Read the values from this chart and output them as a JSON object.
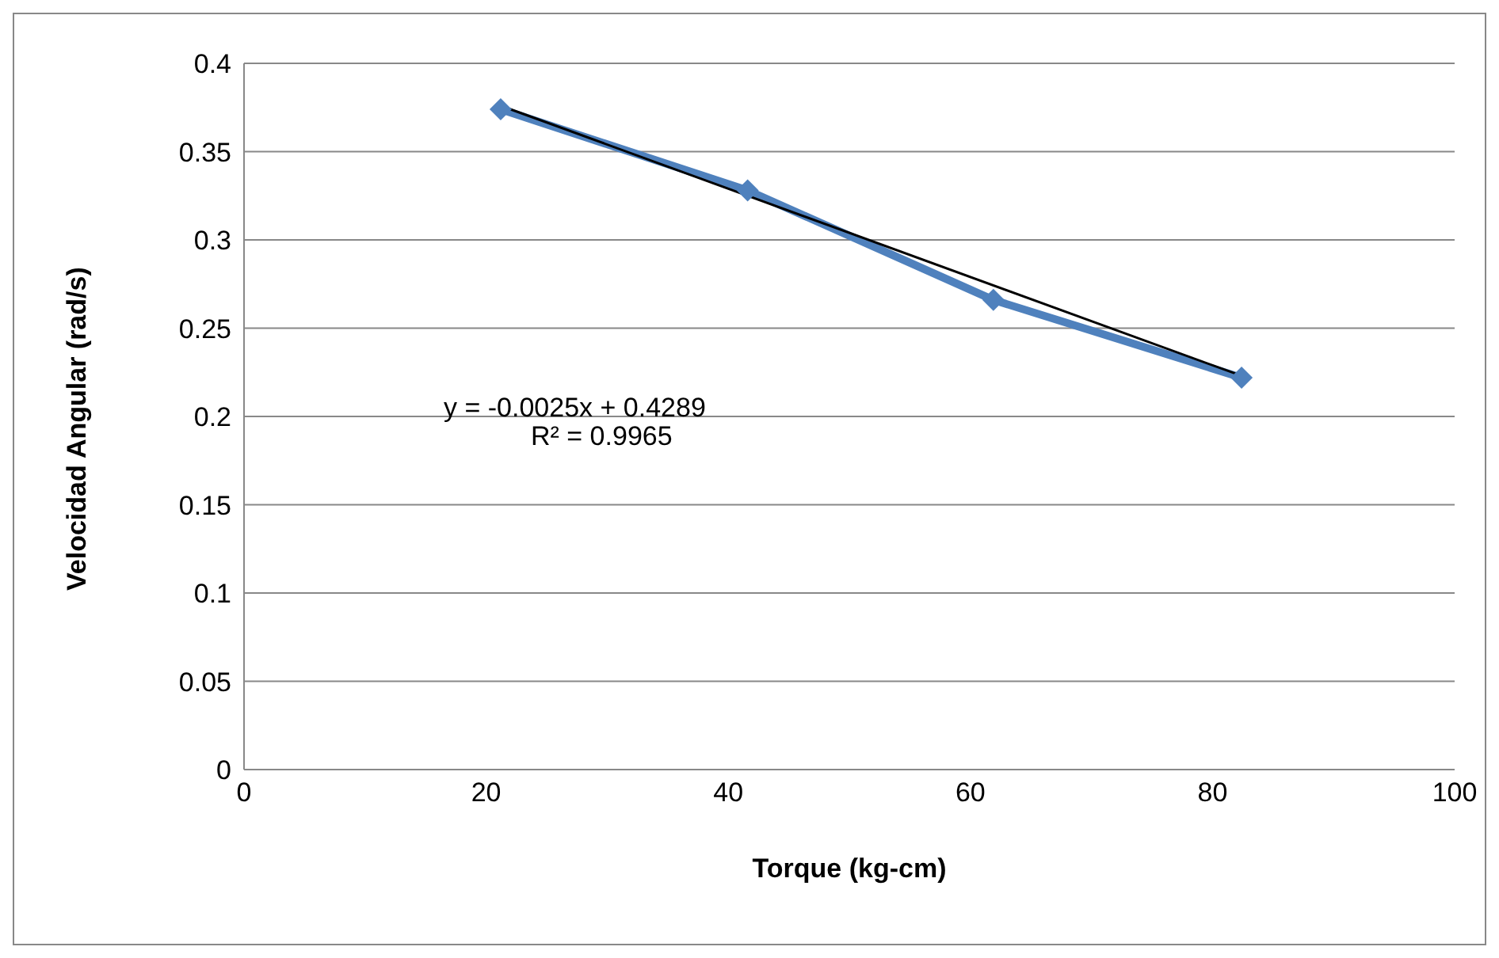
{
  "chart_data": {
    "type": "line",
    "xlabel": "Torque (kg-cm)",
    "ylabel": "Velocidad Angular (rad/s)",
    "xlim": [
      0,
      100
    ],
    "xticks": [
      0,
      20,
      40,
      60,
      80,
      100
    ],
    "ylim": [
      0,
      0.4
    ],
    "yticks": [
      0,
      0.05,
      0.1,
      0.15,
      0.2,
      0.25,
      0.3,
      0.35,
      0.4
    ],
    "grid": "y",
    "annotations": [
      "y = -0.0025x + 0.4289",
      "R² = 0.9965"
    ],
    "series": [
      {
        "color": "#4f81bd",
        "marker": "diamond",
        "x": [
          21.2,
          41.6,
          61.9,
          82.4
        ],
        "values": [
          0.374,
          0.328,
          0.266,
          0.222
        ]
      },
      {
        "color": "#000000",
        "marker": "none",
        "x": [
          21.2,
          82.4
        ],
        "values": [
          0.376,
          0.223
        ]
      }
    ]
  }
}
